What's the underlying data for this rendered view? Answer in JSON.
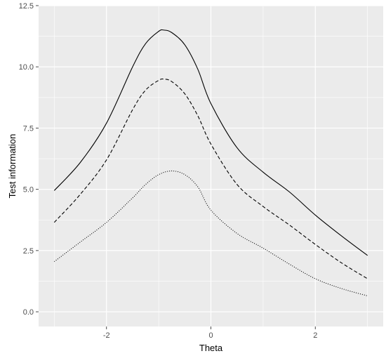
{
  "chart_data": {
    "type": "line",
    "title": "",
    "xlabel": "Theta",
    "ylabel": "Test information",
    "xlim": [
      -3.3,
      3.3
    ],
    "ylim": [
      -0.6,
      12.5
    ],
    "x_ticks": [
      -2,
      0,
      2
    ],
    "x_tick_labels": [
      "-2",
      "0",
      "2"
    ],
    "y_ticks": [
      0,
      2.5,
      5,
      7.5,
      10,
      12.5
    ],
    "y_tick_labels": [
      "0.0",
      "2.5",
      "5.0",
      "7.5",
      "10.0",
      "12.5"
    ],
    "grid": true,
    "legend": "none",
    "colors": {
      "panel_bg": "#ebebeb",
      "grid": "#ffffff",
      "line": "#000000",
      "tick": "#4d4d4d"
    },
    "series": [
      {
        "line_style": "solid",
        "x": [
          -3.0,
          -2.5,
          -2.0,
          -1.5,
          -1.25,
          -1.0,
          -0.9,
          -0.75,
          -0.5,
          -0.25,
          0.0,
          0.5,
          1.0,
          1.5,
          2.0,
          2.5,
          3.0
        ],
        "y": [
          4.95,
          6.1,
          7.7,
          10.0,
          10.95,
          11.45,
          11.5,
          11.4,
          10.9,
          9.9,
          8.5,
          6.7,
          5.7,
          4.9,
          3.95,
          3.1,
          2.3
        ]
      },
      {
        "line_style": "dashed",
        "x": [
          -3.0,
          -2.5,
          -2.0,
          -1.5,
          -1.25,
          -1.0,
          -0.9,
          -0.75,
          -0.5,
          -0.25,
          0.0,
          0.5,
          1.0,
          1.5,
          2.0,
          2.5,
          3.0
        ],
        "y": [
          3.65,
          4.8,
          6.2,
          8.25,
          9.05,
          9.45,
          9.5,
          9.4,
          8.9,
          8.0,
          6.85,
          5.2,
          4.3,
          3.55,
          2.75,
          2.0,
          1.35
        ]
      },
      {
        "line_style": "dotted",
        "x": [
          -3.0,
          -2.5,
          -2.0,
          -1.5,
          -1.25,
          -1.0,
          -0.75,
          -0.5,
          -0.25,
          0.0,
          0.5,
          1.0,
          1.5,
          2.0,
          2.5,
          3.0
        ],
        "y": [
          2.05,
          2.85,
          3.65,
          4.65,
          5.2,
          5.6,
          5.75,
          5.6,
          5.1,
          4.15,
          3.2,
          2.6,
          1.95,
          1.35,
          0.95,
          0.65
        ]
      }
    ]
  }
}
